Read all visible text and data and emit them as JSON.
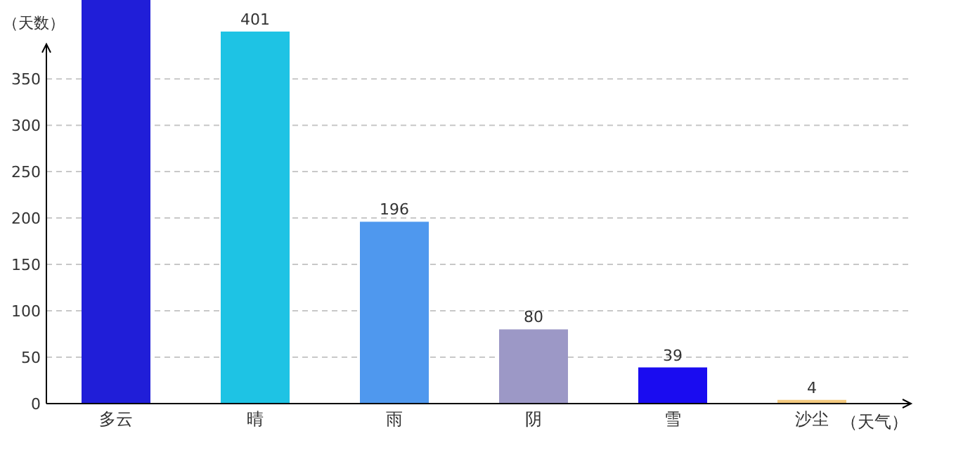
{
  "chart_data": {
    "type": "bar",
    "xlabel": "（天气）",
    "ylabel": "（天数）",
    "categories": [
      "多云",
      "晴",
      "雨",
      "阴",
      "雪",
      "沙尘"
    ],
    "values": [
      435,
      401,
      196,
      80,
      39,
      4
    ],
    "value_labels": [
      null,
      "401",
      "196",
      "80",
      "39",
      "4"
    ],
    "colors": [
      "#201ed8",
      "#1ec3e4",
      "#4f98ee",
      "#9c98c6",
      "#1a0cf0",
      "#f3c97e"
    ],
    "ylim": [
      0,
      435
    ],
    "yticks": [
      0,
      50,
      100,
      150,
      200,
      250,
      300,
      350
    ],
    "grid": "y"
  }
}
